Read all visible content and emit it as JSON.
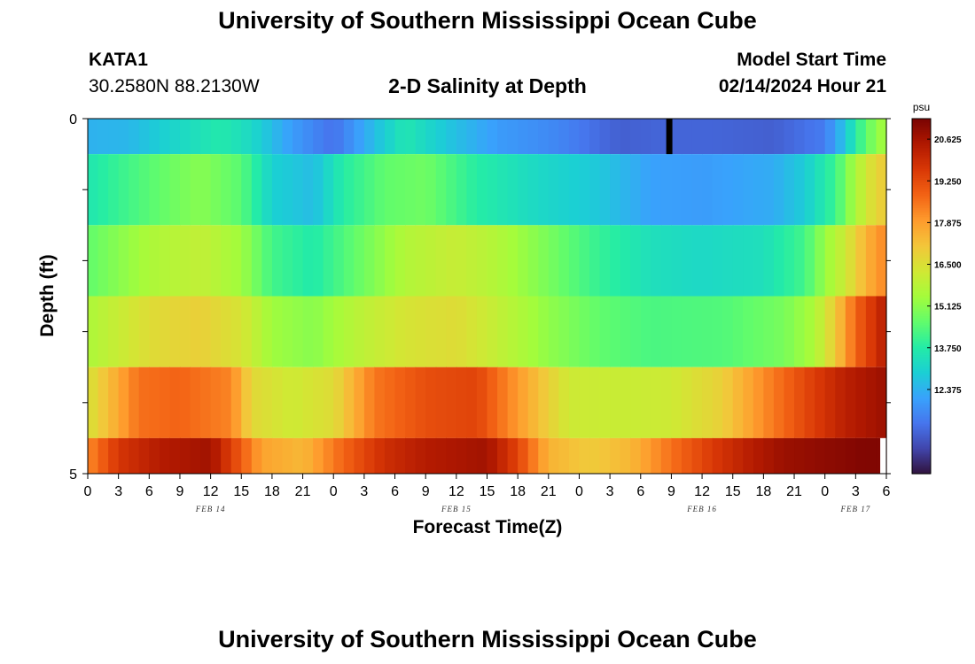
{
  "header": {
    "title": "University of Southern Mississippi Ocean Cube",
    "station_id": "KATA1",
    "coords": "30.2580N  88.2130W",
    "chart_title": "2-D Salinity at Depth",
    "model_label": "Model Start Time",
    "model_time": "02/14/2024 Hour 21"
  },
  "footer": {
    "title": "University of Southern Mississippi Ocean Cube"
  },
  "colors": {
    "colormap": [
      "#30123b",
      "#4145ab",
      "#4675ed",
      "#39a2fc",
      "#1bcfd4",
      "#24eca6",
      "#61fc6c",
      "#a4fc3b",
      "#d1e834",
      "#f3c63a",
      "#fe9b2d",
      "#f36315",
      "#d93806",
      "#b11901",
      "#7a0402"
    ],
    "missing_bar": "#000000",
    "missing_cell": "#ffffff"
  },
  "chart_data": {
    "type": "heatmap",
    "title": "2-D Salinity at Depth",
    "xlabel": "Forecast Time(Z)",
    "ylabel": "Depth (ft)",
    "x_hours_start": 0,
    "x_hours_end": 78,
    "x_tick_labels": [
      "0",
      "3",
      "6",
      "9",
      "12",
      "15",
      "18",
      "21",
      "0",
      "3",
      "6",
      "9",
      "12",
      "15",
      "18",
      "21",
      "0",
      "3",
      "6",
      "9",
      "12",
      "15",
      "18",
      "21",
      "0",
      "3",
      "6"
    ],
    "date_labels": [
      {
        "label": "FEB 14",
        "hour": 12
      },
      {
        "label": "FEB 15",
        "hour": 36
      },
      {
        "label": "FEB 16",
        "hour": 60
      },
      {
        "label": "FEB 17",
        "hour": 75
      }
    ],
    "y_range": [
      0,
      5
    ],
    "y_tick_labels": [
      "0",
      "5"
    ],
    "y_minor_ticks": 5,
    "depth_layers": [
      {
        "depth_from": 0.0,
        "depth_to": 0.5,
        "knots": [
          [
            0,
            12.4
          ],
          [
            4,
            12.5
          ],
          [
            9,
            13.2
          ],
          [
            13,
            13.7
          ],
          [
            16,
            13.2
          ],
          [
            20,
            12.0
          ],
          [
            24,
            11.2
          ],
          [
            28,
            12.6
          ],
          [
            31,
            13.6
          ],
          [
            35,
            12.8
          ],
          [
            40,
            12.0
          ],
          [
            46,
            11.6
          ],
          [
            50,
            11.1
          ],
          [
            52,
            10.9
          ],
          [
            56,
            11.0
          ],
          [
            61,
            11.0
          ],
          [
            67,
            10.9
          ],
          [
            72,
            11.4
          ],
          [
            74,
            12.8
          ],
          [
            76,
            14.6
          ],
          [
            78,
            15.6
          ]
        ]
      },
      {
        "depth_from": 0.5,
        "depth_to": 1.5,
        "knots": [
          [
            0,
            13.6
          ],
          [
            6,
            14.5
          ],
          [
            11,
            15.1
          ],
          [
            15,
            14.5
          ],
          [
            18,
            13.0
          ],
          [
            22,
            12.6
          ],
          [
            25,
            13.8
          ],
          [
            29,
            14.6
          ],
          [
            33,
            14.8
          ],
          [
            38,
            13.8
          ],
          [
            44,
            13.2
          ],
          [
            50,
            12.8
          ],
          [
            55,
            12.1
          ],
          [
            60,
            12.0
          ],
          [
            67,
            12.3
          ],
          [
            70,
            12.9
          ],
          [
            73,
            14.1
          ],
          [
            75,
            15.6
          ],
          [
            77,
            16.8
          ],
          [
            78,
            17.0
          ]
        ]
      },
      {
        "depth_from": 1.5,
        "depth_to": 2.5,
        "knots": [
          [
            0,
            14.6
          ],
          [
            6,
            15.6
          ],
          [
            11,
            16.0
          ],
          [
            15,
            15.4
          ],
          [
            18,
            14.2
          ],
          [
            22,
            13.7
          ],
          [
            26,
            14.6
          ],
          [
            31,
            15.7
          ],
          [
            36,
            16.1
          ],
          [
            40,
            15.7
          ],
          [
            45,
            14.9
          ],
          [
            50,
            14.0
          ],
          [
            55,
            13.4
          ],
          [
            60,
            13.2
          ],
          [
            66,
            13.4
          ],
          [
            70,
            14.2
          ],
          [
            72,
            15.3
          ],
          [
            74,
            16.2
          ],
          [
            76,
            17.5
          ],
          [
            78,
            18.3
          ]
        ]
      },
      {
        "depth_from": 2.5,
        "depth_to": 3.5,
        "knots": [
          [
            0,
            15.6
          ],
          [
            6,
            16.6
          ],
          [
            11,
            16.9
          ],
          [
            15,
            16.4
          ],
          [
            18,
            15.4
          ],
          [
            22,
            15.1
          ],
          [
            26,
            15.8
          ],
          [
            31,
            16.4
          ],
          [
            36,
            16.6
          ],
          [
            40,
            16.0
          ],
          [
            45,
            15.2
          ],
          [
            50,
            14.6
          ],
          [
            55,
            14.3
          ],
          [
            62,
            14.4
          ],
          [
            68,
            14.9
          ],
          [
            71,
            15.6
          ],
          [
            73,
            17.0
          ],
          [
            75,
            18.8
          ],
          [
            78,
            20.4
          ]
        ]
      },
      {
        "depth_from": 3.5,
        "depth_to": 4.5,
        "knots": [
          [
            0,
            16.4
          ],
          [
            5,
            18.6
          ],
          [
            9,
            18.8
          ],
          [
            14,
            18.3
          ],
          [
            16,
            16.7
          ],
          [
            20,
            16.2
          ],
          [
            24,
            16.6
          ],
          [
            28,
            18.5
          ],
          [
            33,
            19.2
          ],
          [
            38,
            19.4
          ],
          [
            43,
            17.6
          ],
          [
            47,
            16.2
          ],
          [
            52,
            16.1
          ],
          [
            57,
            16.2
          ],
          [
            62,
            16.9
          ],
          [
            66,
            18.2
          ],
          [
            70,
            19.3
          ],
          [
            74,
            20.3
          ],
          [
            78,
            20.8
          ]
        ]
      },
      {
        "depth_from": 4.5,
        "depth_to": 5.0,
        "knots": [
          [
            0,
            18.2
          ],
          [
            3,
            19.7
          ],
          [
            7,
            20.4
          ],
          [
            12,
            20.7
          ],
          [
            14,
            19.5
          ],
          [
            17,
            17.8
          ],
          [
            21,
            17.4
          ],
          [
            25,
            18.8
          ],
          [
            29,
            19.9
          ],
          [
            33,
            20.4
          ],
          [
            39,
            20.7
          ],
          [
            42,
            19.4
          ],
          [
            45,
            17.5
          ],
          [
            49,
            17.0
          ],
          [
            53,
            17.4
          ],
          [
            57,
            18.6
          ],
          [
            61,
            19.6
          ],
          [
            65,
            20.4
          ],
          [
            68,
            20.8
          ],
          [
            72,
            21.0
          ],
          [
            76,
            21.2
          ],
          [
            78,
            21.2
          ]
        ]
      }
    ],
    "missing_bar_hours": [
      56.5,
      57.1
    ],
    "missing_bar_depth": [
      0,
      0.5
    ],
    "missing_cell_hours": [
      77.4,
      78
    ],
    "missing_cell_depth": [
      4.5,
      5.0
    ],
    "colorbar": {
      "unit": "psu",
      "min": 9.6,
      "max": 21.3,
      "ticks": [
        "20.625",
        "19.250",
        "17.875",
        "16.500",
        "15.125",
        "13.750",
        "12.375"
      ]
    }
  }
}
